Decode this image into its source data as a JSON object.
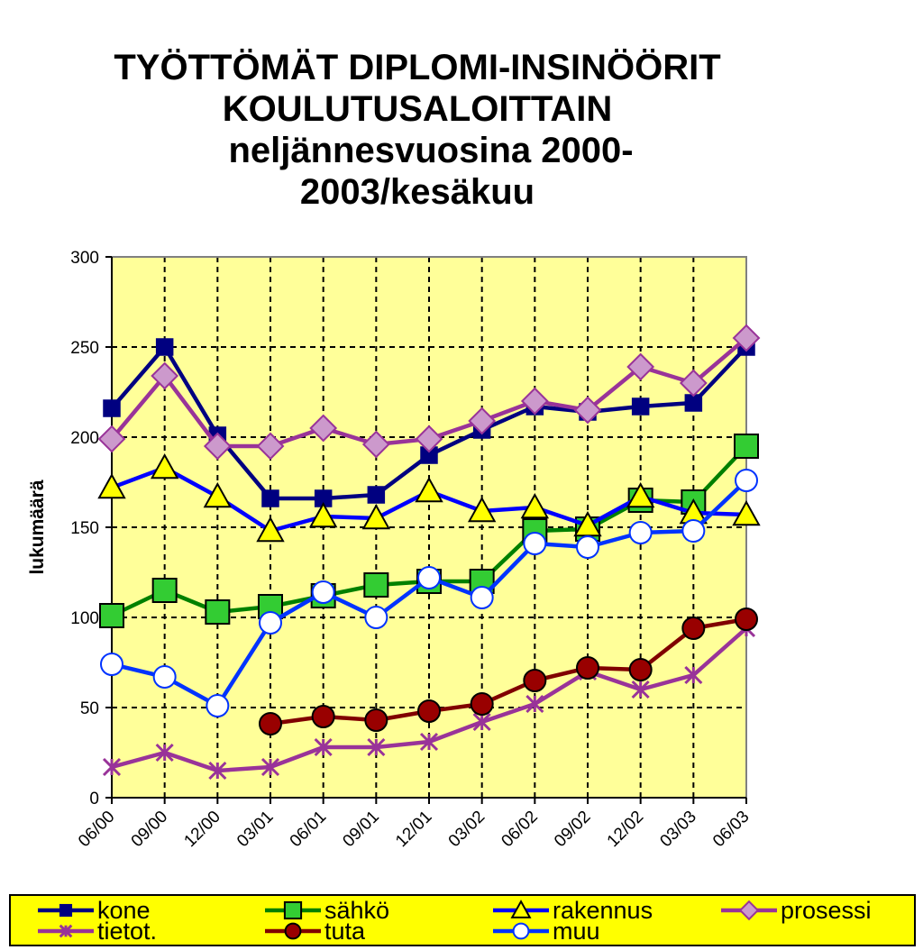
{
  "chart_data": {
    "type": "line",
    "title_lines": [
      "TYÖTTÖMÄT DIPLOMI-INSINÖÖRIT",
      "KOULUTUSALOITTAIN",
      "neljännesvuosina 2000-",
      "2003/kesäkuu"
    ],
    "xlabel": "",
    "ylabel": "lukumäärä",
    "ylim": [
      0,
      300
    ],
    "yticks": [
      0,
      50,
      100,
      150,
      200,
      250,
      300
    ],
    "categories": [
      "06/00",
      "09/00",
      "12/00",
      "03/01",
      "06/01",
      "09/01",
      "12/01",
      "03/02",
      "06/02",
      "09/02",
      "12/02",
      "03/03",
      "06/03"
    ],
    "grid": true,
    "plot_background": "#ffff99",
    "legend_background": "#ffff00",
    "legend_position": "bottom",
    "series": [
      {
        "name": "kone",
        "color": "#000080",
        "marker": "square",
        "values": [
          216,
          250,
          201,
          166,
          166,
          168,
          190,
          204,
          217,
          214,
          217,
          219,
          250
        ]
      },
      {
        "name": "sähkö",
        "color": "#008000",
        "marker": "square-green",
        "values": [
          101,
          115,
          103,
          106,
          112,
          118,
          120,
          120,
          148,
          149,
          165,
          164,
          195
        ]
      },
      {
        "name": "rakennus",
        "color": "#0000ff",
        "marker": "triangle",
        "values": [
          172,
          183,
          167,
          148,
          156,
          155,
          170,
          159,
          161,
          151,
          167,
          158,
          157
        ]
      },
      {
        "name": "prosessi",
        "color": "#993399",
        "marker": "diamond",
        "values": [
          199,
          234,
          195,
          195,
          205,
          196,
          199,
          209,
          220,
          215,
          239,
          230,
          255
        ]
      },
      {
        "name": "tietot.",
        "color": "#993399",
        "marker": "star",
        "values": [
          17,
          25,
          15,
          17,
          28,
          28,
          31,
          42,
          52,
          70,
          60,
          68,
          94
        ]
      },
      {
        "name": "tuta",
        "color": "#800000",
        "marker": "circle",
        "values": [
          null,
          null,
          null,
          41,
          45,
          43,
          48,
          52,
          65,
          72,
          71,
          94,
          99
        ]
      },
      {
        "name": "muu",
        "color": "#0033ff",
        "marker": "open-circle",
        "values": [
          74,
          67,
          51,
          97,
          114,
          100,
          122,
          111,
          141,
          139,
          147,
          148,
          176
        ]
      }
    ]
  }
}
